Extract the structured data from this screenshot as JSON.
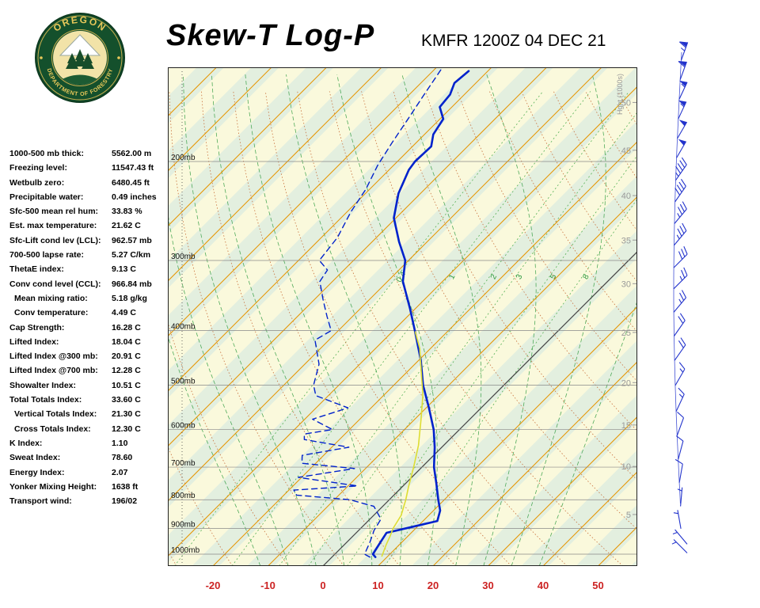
{
  "header": {
    "title": "Skew-T Log-P",
    "station_line": "KMFR 1200Z 04 DEC 21",
    "logo": {
      "arc_top": "OREGON",
      "arc_bottom": "DEPARTMENT OF FORESTRY"
    }
  },
  "indices": [
    {
      "label": "1000-500 mb thick:",
      "value": "5562.00 m",
      "indent": false
    },
    {
      "label": "Freezing level:",
      "value": "11547.43 ft",
      "indent": false
    },
    {
      "label": "Wetbulb zero:",
      "value": "6480.45 ft",
      "indent": false
    },
    {
      "label": "Precipitable water:",
      "value": "0.49 inches",
      "indent": false
    },
    {
      "label": "Sfc-500 mean rel hum:",
      "value": "33.83 %",
      "indent": false
    },
    {
      "label": "Est. max temperature:",
      "value": "21.62 C",
      "indent": false
    },
    {
      "label": "Sfc-Lift cond lev (LCL):",
      "value": "962.57 mb",
      "indent": false
    },
    {
      "label": "700-500 lapse rate:",
      "value": "5.27 C/km",
      "indent": false
    },
    {
      "label": "ThetaE index:",
      "value": "9.13 C",
      "indent": false
    },
    {
      "label": "Conv cond level (CCL):",
      "value": "966.84 mb",
      "indent": false
    },
    {
      "label": "Mean mixing ratio:",
      "value": "5.18 g/kg",
      "indent": true
    },
    {
      "label": "Conv temperature:",
      "value": "4.49 C",
      "indent": true
    },
    {
      "label": "Cap Strength:",
      "value": "16.28 C",
      "indent": false
    },
    {
      "label": "Lifted Index:",
      "value": "18.04 C",
      "indent": false
    },
    {
      "label": "Lifted Index @300 mb:",
      "value": "20.91 C",
      "indent": false
    },
    {
      "label": "Lifted Index @700 mb:",
      "value": "12.28 C",
      "indent": false
    },
    {
      "label": "Showalter Index:",
      "value": "10.51 C",
      "indent": false
    },
    {
      "label": "Total Totals Index:",
      "value": "33.60 C",
      "indent": false
    },
    {
      "label": "Vertical Totals Index:",
      "value": "21.30 C",
      "indent": true
    },
    {
      "label": "Cross Totals Index:",
      "value": "12.30 C",
      "indent": true
    },
    {
      "label": "K Index:",
      "value": "1.10",
      "indent": false
    },
    {
      "label": "Sweat Index:",
      "value": "78.60",
      "indent": false
    },
    {
      "label": "Energy Index:",
      "value": "2.07",
      "indent": false
    },
    {
      "label": "Yonker Mixing Height:",
      "value": "1638 ft",
      "indent": false
    },
    {
      "label": "Transport wind:",
      "value": "196/02",
      "indent": false
    }
  ],
  "chart_data": {
    "type": "line",
    "title": "Skew-T Log-P",
    "x_axis_label_units": "C",
    "temp_ticks": [
      -20,
      -10,
      0,
      10,
      20,
      30,
      40,
      50
    ],
    "pressure_levels": [
      200,
      300,
      400,
      500,
      600,
      700,
      800,
      900,
      1000
    ],
    "pressure_unit": "mb",
    "height_axis_label": "Hght (1000s)",
    "height_ticks_kft_vs_mb": [
      [
        50,
        157
      ],
      [
        45,
        191
      ],
      [
        40,
        230
      ],
      [
        35,
        276
      ],
      [
        30,
        330
      ],
      [
        25,
        403
      ],
      [
        20,
        495
      ],
      [
        15,
        589
      ],
      [
        10,
        698
      ],
      [
        5,
        850
      ]
    ],
    "mixing_ratio_labels": [
      0.4,
      1,
      2,
      3,
      5,
      8
    ],
    "series": [
      {
        "name": "temperature",
        "style": "solid",
        "color": "#0022CC",
        "width": 2.6,
        "points_p_t": [
          [
            1012,
            7.9
          ],
          [
            1000,
            6.9
          ],
          [
            952,
            6.1
          ],
          [
            916,
            5.5
          ],
          [
            898,
            8.5
          ],
          [
            873,
            12.6
          ],
          [
            836,
            11.2
          ],
          [
            800,
            8.9
          ],
          [
            747,
            5.5
          ],
          [
            700,
            2.2
          ],
          [
            645,
            -1.3
          ],
          [
            600,
            -4.7
          ],
          [
            549,
            -9.5
          ],
          [
            500,
            -14.7
          ],
          [
            451,
            -19.7
          ],
          [
            400,
            -26.1
          ],
          [
            366,
            -30.9
          ],
          [
            327,
            -37.2
          ],
          [
            300,
            -40.6
          ],
          [
            278,
            -45.1
          ],
          [
            252,
            -50.4
          ],
          [
            228,
            -54.0
          ],
          [
            207,
            -56.4
          ],
          [
            200,
            -56.8
          ],
          [
            188,
            -56.6
          ],
          [
            179,
            -58.4
          ],
          [
            168,
            -59.4
          ],
          [
            160,
            -62.2
          ],
          [
            152,
            -62.6
          ],
          [
            145,
            -63.9
          ],
          [
            138,
            -63.5
          ]
        ]
      },
      {
        "name": "dewpoint",
        "style": "dashed",
        "color": "#0022CC",
        "width": 1.4,
        "points_p_t": [
          [
            1012,
            6.9
          ],
          [
            1000,
            5.4
          ],
          [
            952,
            4.2
          ],
          [
            907,
            2.8
          ],
          [
            866,
            2.0
          ],
          [
            822,
            -1.6
          ],
          [
            800,
            -7.2
          ],
          [
            785,
            -17.7
          ],
          [
            769,
            -19.1
          ],
          [
            756,
            -8.3
          ],
          [
            730,
            -20.6
          ],
          [
            704,
            -12.0
          ],
          [
            689,
            -22.5
          ],
          [
            667,
            -23.9
          ],
          [
            645,
            -16.9
          ],
          [
            625,
            -26.4
          ],
          [
            611,
            -27.4
          ],
          [
            600,
            -23.1
          ],
          [
            575,
            -28.6
          ],
          [
            549,
            -24.2
          ],
          [
            522,
            -32.3
          ],
          [
            500,
            -34.6
          ],
          [
            459,
            -37.4
          ],
          [
            416,
            -42.5
          ],
          [
            400,
            -41.3
          ],
          [
            377,
            -44.7
          ],
          [
            353,
            -48.3
          ],
          [
            327,
            -52.3
          ],
          [
            312,
            -53.0
          ],
          [
            300,
            -56.2
          ],
          [
            273,
            -57.1
          ],
          [
            246,
            -59.3
          ],
          [
            224,
            -60.7
          ],
          [
            203,
            -62.9
          ],
          [
            185,
            -64.4
          ],
          [
            168,
            -65.8
          ],
          [
            152,
            -67.3
          ],
          [
            137,
            -68.8
          ]
        ]
      },
      {
        "name": "parcel-path",
        "style": "solid",
        "color": "#DDDD33",
        "width": 1.6,
        "points_p_t": [
          [
            1008,
            8.9
          ],
          [
            962,
            7.6
          ],
          [
            930,
            6.8
          ],
          [
            900,
            5.9
          ],
          [
            853,
            5.0
          ],
          [
            800,
            3.0
          ],
          [
            760,
            1.2
          ],
          [
            700,
            -1.5
          ],
          [
            640,
            -4.6
          ],
          [
            576,
            -8.8
          ],
          [
            520,
            -13.0
          ],
          [
            474,
            -17.4
          ],
          [
            430,
            -22.0
          ],
          [
            402,
            -25.8
          ]
        ]
      }
    ],
    "wind_barbs_p_dir_spd": [
      [
        132,
        200,
        65
      ],
      [
        143,
        200,
        60
      ],
      [
        155,
        205,
        55
      ],
      [
        168,
        205,
        55
      ],
      [
        182,
        210,
        50
      ],
      [
        197,
        210,
        50
      ],
      [
        216,
        215,
        45
      ],
      [
        236,
        215,
        40
      ],
      [
        258,
        220,
        35
      ],
      [
        282,
        220,
        35
      ],
      [
        309,
        225,
        30
      ],
      [
        337,
        225,
        25
      ],
      [
        371,
        220,
        25
      ],
      [
        409,
        215,
        20
      ],
      [
        452,
        215,
        20
      ],
      [
        501,
        210,
        15
      ],
      [
        557,
        205,
        15
      ],
      [
        615,
        200,
        10
      ],
      [
        678,
        195,
        10
      ],
      [
        746,
        190,
        10
      ],
      [
        822,
        185,
        5
      ],
      [
        901,
        170,
        5
      ],
      [
        960,
        140,
        3
      ],
      [
        995,
        135,
        2
      ]
    ],
    "colors": {
      "isotherm": "#E69500",
      "isotherm_zero": "#444444",
      "dry_adiabat": "#C8703C",
      "moist_adiabat": "#3FA34D",
      "mixing_ratio": "#58B258",
      "mixing_label": "#2E9940",
      "pressure_line": "#888888",
      "pressure_label": "#111111",
      "height_label": "#999999",
      "temp_axis_label": "#CC2222",
      "wind_barb": "#2233CC",
      "stripe_a": "#FAF9DC",
      "stripe_b": "#E3EFDF"
    },
    "axis_ranges": {
      "pressure_mb": [
        140,
        1050
      ],
      "temp_at_surface_c": [
        -29,
        57
      ]
    }
  }
}
